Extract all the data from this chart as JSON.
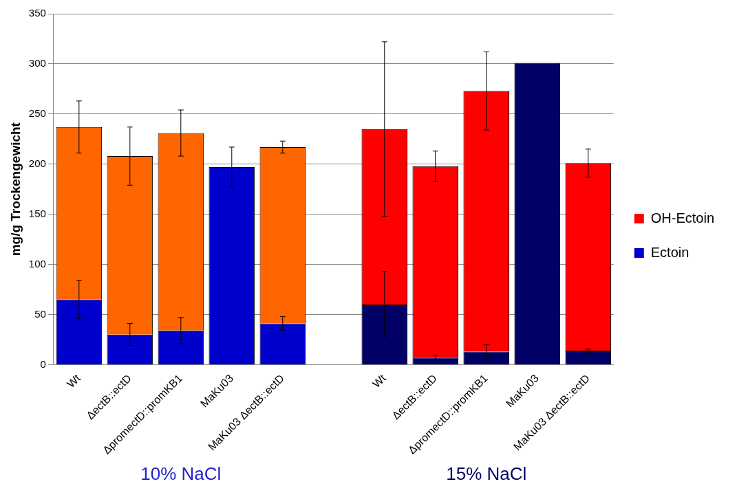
{
  "chart_data": {
    "type": "bar",
    "stacked": true,
    "ylabel": "mg/g Trockengewicht",
    "categories": [
      "Wt",
      "ΔectB::ectD",
      "ΔpromectD::promKB1",
      "MaKu03",
      "MaKu03 ΔectB::ectD",
      null,
      "Wt",
      "ΔectB::ectD",
      "ΔpromectD::promKB1",
      "MaKu03",
      "MaKu03 ΔectB::ectD"
    ],
    "series": [
      {
        "name": "Ectoin",
        "color": "#0000cc",
        "colors": [
          "#0000cc",
          "#0000cc",
          "#0000cc",
          "#0000cc",
          "#0000cc",
          null,
          "#000066",
          "#000066",
          "#000066",
          "#000066",
          "#000066"
        ],
        "values": [
          65,
          30,
          34,
          197,
          41,
          null,
          60,
          7,
          13,
          301,
          14
        ],
        "errors": [
          19,
          11,
          13,
          20,
          7,
          null,
          33,
          2,
          7,
          null,
          1.5
        ]
      },
      {
        "name": "OH-Ectoin",
        "color": "#ff0000",
        "colors": [
          "#ff6600",
          "#ff6600",
          "#ff6600",
          "#ff6600",
          "#ff6600",
          null,
          "#ff0000",
          "#ff0000",
          "#ff0000",
          "#ff0000",
          "#ff0000"
        ],
        "values": [
          172,
          178,
          197,
          null,
          176,
          null,
          175,
          191,
          260,
          null,
          187
        ],
        "errors": [
          26,
          29,
          23,
          null,
          6,
          null,
          87,
          15,
          39,
          null,
          14
        ]
      }
    ],
    "ylim": [
      0,
      350
    ],
    "yticks": [
      0,
      50,
      100,
      150,
      200,
      250,
      300,
      350
    ],
    "grid": "y",
    "legend": "right",
    "annotations": [
      "10% NaCl",
      "15% NaCl"
    ]
  }
}
